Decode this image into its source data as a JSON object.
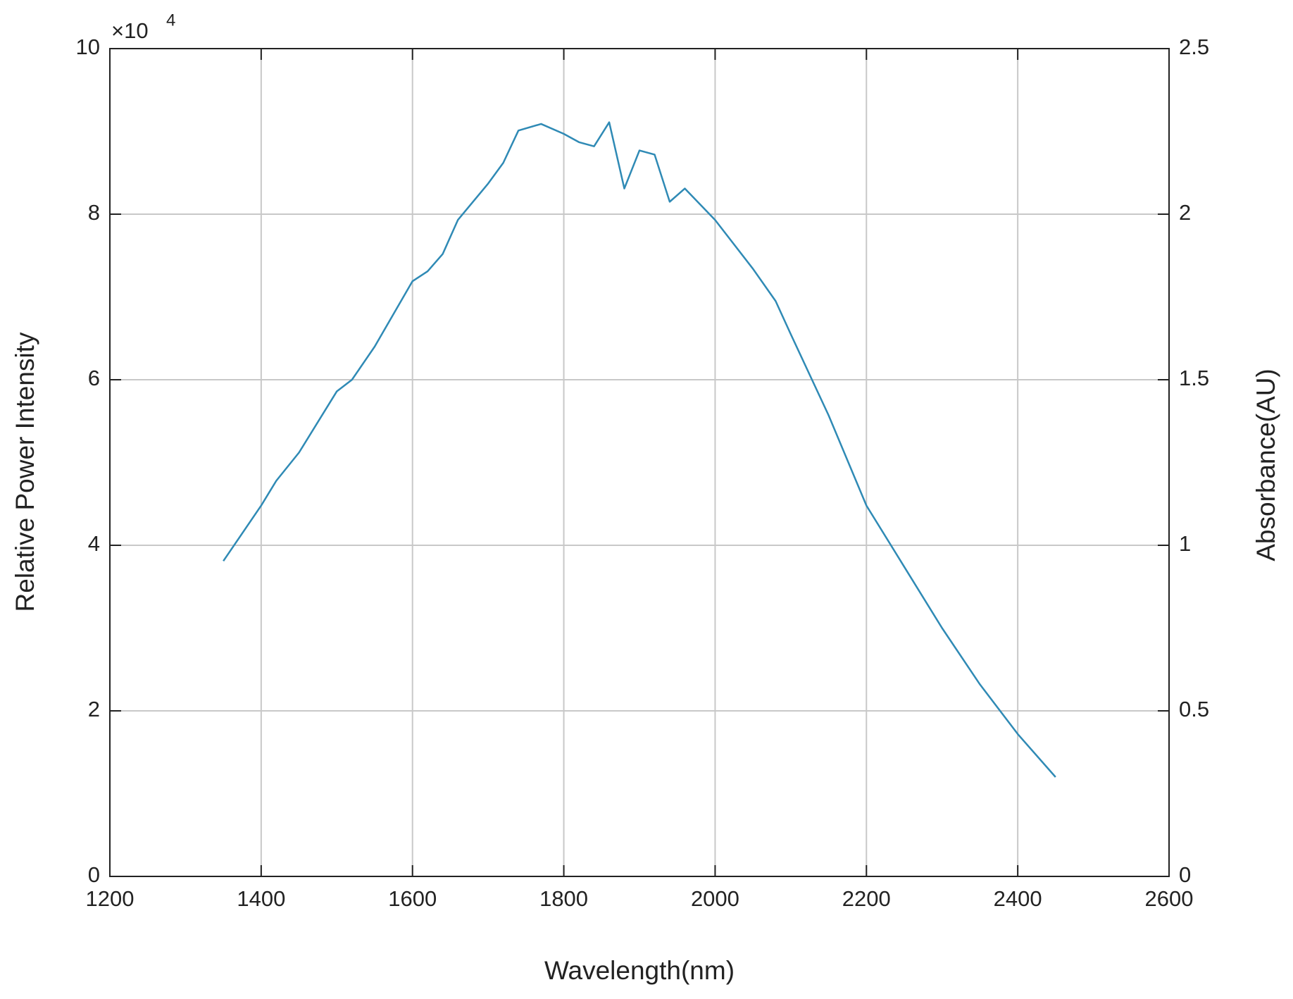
{
  "chart_data": {
    "type": "line",
    "x_label": "Wavelength(nm)",
    "y_label": "Relative Power Intensity",
    "y2_label": "Absorbance(AU)",
    "y_exponent": {
      "base": "×10",
      "power": "4"
    },
    "xlim": [
      1200,
      2600
    ],
    "xticks": [
      1200,
      1400,
      1600,
      1800,
      2000,
      2200,
      2400,
      2600
    ],
    "ylim": [
      0,
      10
    ],
    "yticks": [
      0,
      2,
      4,
      6,
      8,
      10
    ],
    "y2lim": [
      0,
      2.5
    ],
    "y2ticks": [
      0,
      0.5,
      1,
      1.5,
      2,
      2.5
    ],
    "grid": true,
    "x": [
      1350,
      1400,
      1420,
      1450,
      1500,
      1520,
      1550,
      1600,
      1620,
      1640,
      1660,
      1700,
      1720,
      1740,
      1770,
      1800,
      1820,
      1840,
      1860,
      1880,
      1900,
      1920,
      1940,
      1960,
      2000,
      2050,
      2080,
      2100,
      2150,
      2200,
      2250,
      2300,
      2350,
      2400,
      2450
    ],
    "series": [
      {
        "color": "#2f8ab5",
        "values": [
          3.81,
          4.48,
          4.78,
          5.12,
          5.86,
          6.0,
          6.4,
          7.19,
          7.31,
          7.52,
          7.93,
          8.37,
          8.62,
          9.01,
          9.09,
          8.97,
          8.87,
          8.82,
          9.11,
          8.31,
          8.77,
          8.72,
          8.15,
          8.31,
          7.93,
          7.34,
          6.95,
          6.55,
          5.57,
          4.48,
          3.74,
          3.0,
          2.32,
          1.72,
          1.2
        ]
      }
    ]
  }
}
